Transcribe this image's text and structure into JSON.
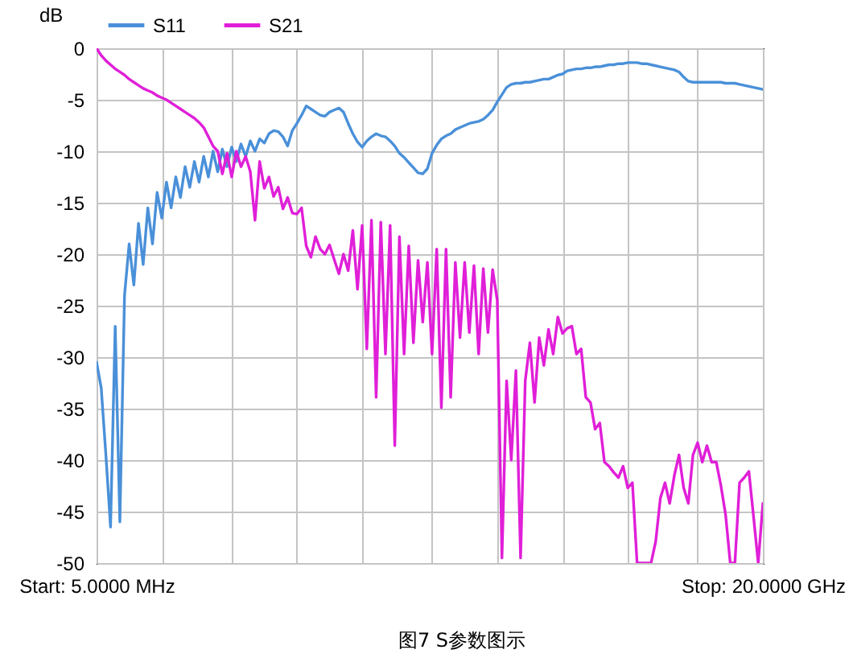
{
  "chart_data": {
    "type": "line",
    "ylabel": "dB",
    "annotations": [
      "图7 S参数图示"
    ],
    "categories": [
      "Start: 5.0000 MHz",
      null,
      null,
      null,
      null,
      null,
      null,
      null,
      null,
      null,
      null,
      null,
      null,
      null,
      null,
      null,
      null,
      null,
      null,
      null,
      null,
      null,
      null,
      null,
      null,
      null,
      null,
      null,
      null,
      null,
      null,
      null,
      null,
      null,
      null,
      null,
      null,
      null,
      null,
      null,
      null,
      null,
      null,
      null,
      null,
      null,
      null,
      null,
      null,
      null,
      null,
      null,
      null,
      null,
      null,
      null,
      null,
      null,
      null,
      null,
      null,
      null,
      null,
      null,
      null,
      null,
      null,
      null,
      null,
      null,
      null,
      null,
      null,
      null,
      null,
      null,
      null,
      null,
      null,
      null,
      null,
      null,
      null,
      null,
      null,
      null,
      null,
      null,
      null,
      null,
      null,
      null,
      null,
      null,
      null,
      null,
      null,
      null,
      null,
      null,
      null,
      null,
      null,
      null,
      null,
      null,
      null,
      null,
      null,
      null,
      null,
      null,
      null,
      null,
      null,
      null,
      null,
      null,
      null,
      null,
      null,
      null,
      null,
      null,
      null,
      null,
      null,
      null,
      null,
      null,
      null,
      null,
      null,
      null,
      null,
      null,
      null,
      null,
      null,
      null,
      null,
      null,
      null,
      "Stop: 20.0000 GHz"
    ],
    "ylim": [
      -50,
      0
    ],
    "yticks": [
      0,
      -5,
      -10,
      -15,
      -20,
      -25,
      -30,
      -35,
      -40,
      -45,
      -50
    ],
    "grid": true,
    "legend": "top left",
    "series": [
      {
        "name": "S11",
        "color": "#4a90d9",
        "values": [
          -30.5,
          -33,
          -39.5,
          -46.5,
          -27,
          -46,
          -24,
          -19,
          -23,
          -17,
          -21,
          -15.5,
          -19,
          -14,
          -16.5,
          -13,
          -15.5,
          -12.5,
          -14.5,
          -11.5,
          -13.5,
          -11,
          -13,
          -10.5,
          -12.5,
          -10,
          -12,
          -9.8,
          -11.5,
          -9.6,
          -11,
          -9.3,
          -10.5,
          -9,
          -10,
          -8.8,
          -9.2,
          -8.3,
          -8,
          -8.1,
          -8.6,
          -9.5,
          -8,
          -7.3,
          -6.5,
          -5.6,
          -5.9,
          -6.2,
          -6.5,
          -6.6,
          -6.2,
          -6,
          -5.8,
          -6.2,
          -7.3,
          -8.3,
          -9.1,
          -9.6,
          -9,
          -8.6,
          -8.3,
          -8.5,
          -8.6,
          -9,
          -9.5,
          -10.2,
          -10.6,
          -11.1,
          -11.6,
          -12.1,
          -12.2,
          -11.7,
          -10.2,
          -9.4,
          -8.8,
          -8.5,
          -8.3,
          -7.9,
          -7.7,
          -7.5,
          -7.3,
          -7.2,
          -7.1,
          -6.9,
          -6.5,
          -6,
          -5.2,
          -4.5,
          -3.8,
          -3.5,
          -3.4,
          -3.4,
          -3.3,
          -3.3,
          -3.2,
          -3.1,
          -3,
          -3,
          -2.8,
          -2.6,
          -2.5,
          -2.2,
          -2.1,
          -2,
          -2,
          -1.9,
          -1.9,
          -1.8,
          -1.8,
          -1.7,
          -1.6,
          -1.6,
          -1.5,
          -1.5,
          -1.4,
          -1.4,
          -1.4,
          -1.5,
          -1.5,
          -1.6,
          -1.7,
          -1.8,
          -1.9,
          -2,
          -2.1,
          -2.3,
          -2.8,
          -3.2,
          -3.3,
          -3.3,
          -3.3,
          -3.3,
          -3.3,
          -3.3,
          -3.3,
          -3.4,
          -3.4,
          -3.4,
          -3.5,
          -3.6,
          -3.7,
          -3.8,
          -3.9,
          -4
        ]
      },
      {
        "name": "S21",
        "color": "#e01fd8",
        "values": [
          0,
          -0.7,
          -1.2,
          -1.6,
          -2,
          -2.3,
          -2.6,
          -3,
          -3.3,
          -3.6,
          -3.9,
          -4.1,
          -4.3,
          -4.6,
          -4.8,
          -5,
          -5.3,
          -5.6,
          -5.9,
          -6.2,
          -6.5,
          -6.8,
          -7.2,
          -7.7,
          -8.6,
          -9.5,
          -10,
          -12.2,
          -10.2,
          -12.5,
          -10,
          -11.5,
          -10.5,
          -12,
          -16.7,
          -11,
          -13.6,
          -12.5,
          -14.4,
          -13.5,
          -15.6,
          -14.5,
          -16,
          -16.1,
          -15.5,
          -19.2,
          -20.3,
          -18.3,
          -19.5,
          -20,
          -19.1,
          -20.5,
          -21.9,
          -20,
          -21.6,
          -17.7,
          -23.4,
          -17.2,
          -29.2,
          -16.7,
          -33.9,
          -16.9,
          -29.7,
          -17.2,
          -38.6,
          -18.3,
          -29.7,
          -19.2,
          -28.6,
          -20.6,
          -26.6,
          -20.8,
          -29.7,
          -19.5,
          -34.9,
          -19.5,
          -33.9,
          -20.8,
          -28.1,
          -20.8,
          -27.6,
          -21.1,
          -29.7,
          -21.4,
          -27.6,
          -21.5,
          -24.5,
          -49.5,
          -32.3,
          -40,
          -31.3,
          -49.5,
          -32.3,
          -28.6,
          -34.4,
          -28.1,
          -30.8,
          -27.3,
          -29.7,
          -26.1,
          -27.7,
          -27.2,
          -27,
          -29.7,
          -29.2,
          -33.9,
          -34.4,
          -37,
          -36.4,
          -40.2,
          -40.6,
          -41.2,
          -41.7,
          -40.6,
          -42.7,
          -42.2,
          -50,
          -50,
          -50,
          -50,
          -47.9,
          -43.7,
          -42.2,
          -44.2,
          -41.5,
          -39.5,
          -42.7,
          -44.2,
          -39.5,
          -38.3,
          -40.2,
          -38.6,
          -40.2,
          -40.2,
          -42.5,
          -45.3,
          -50,
          -50,
          -42.2,
          -41.7,
          -41.1,
          -45.5,
          -50,
          -44.2
        ]
      }
    ]
  }
}
